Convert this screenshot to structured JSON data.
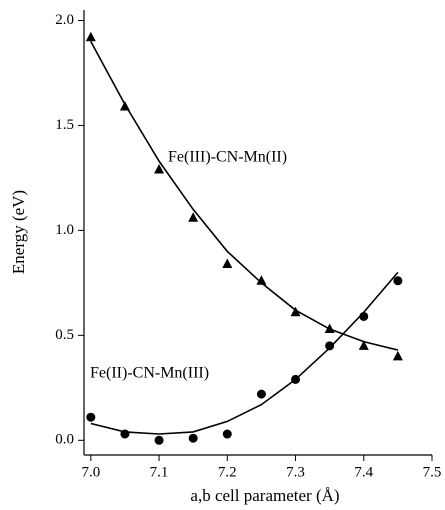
{
  "chart_data": {
    "type": "scatter",
    "xlabel": "a,b cell parameter (Å)",
    "ylabel": "Energy (eV)",
    "x": [
      7.0,
      7.05,
      7.1,
      7.15,
      7.2,
      7.25,
      7.3,
      7.35,
      7.4,
      7.45
    ],
    "series": [
      {
        "name": "Fe(III)-CN-Mn(II)",
        "color": "#000000",
        "mode": "markers",
        "marker": "triangle",
        "values": [
          1.92,
          1.59,
          1.29,
          1.06,
          0.84,
          0.76,
          0.61,
          0.53,
          0.45,
          0.4
        ]
      },
      {
        "name": "Fe(II)-CN-Mn(III)",
        "color": "#000000",
        "mode": "markers",
        "marker": "circle",
        "values": [
          0.11,
          0.03,
          0.0,
          0.01,
          0.03,
          0.22,
          0.29,
          0.45,
          0.59,
          0.76
        ]
      },
      {
        "color": "#000000",
        "mode": "line",
        "values": [
          1.9,
          1.6,
          1.33,
          1.1,
          0.9,
          0.75,
          0.62,
          0.53,
          0.47,
          0.43
        ]
      },
      {
        "color": "#000000",
        "mode": "line",
        "values": [
          0.08,
          0.04,
          0.03,
          0.04,
          0.09,
          0.17,
          0.29,
          0.44,
          0.61,
          0.8
        ]
      }
    ],
    "xlim": [
      6.99,
      7.5
    ],
    "xticks": [
      {
        "value": 7.0,
        "label": "7.0"
      },
      7.1,
      7.2,
      7.3,
      7.4,
      7.5
    ],
    "ylim": [
      -0.07,
      2.05
    ],
    "yticks": [
      {
        "value": 0.0,
        "label": "0.0"
      },
      0.5,
      {
        "value": 1.0,
        "label": "1.0"
      },
      1.5,
      {
        "value": 2.0,
        "label": "2.0"
      }
    ],
    "grid": false
  }
}
